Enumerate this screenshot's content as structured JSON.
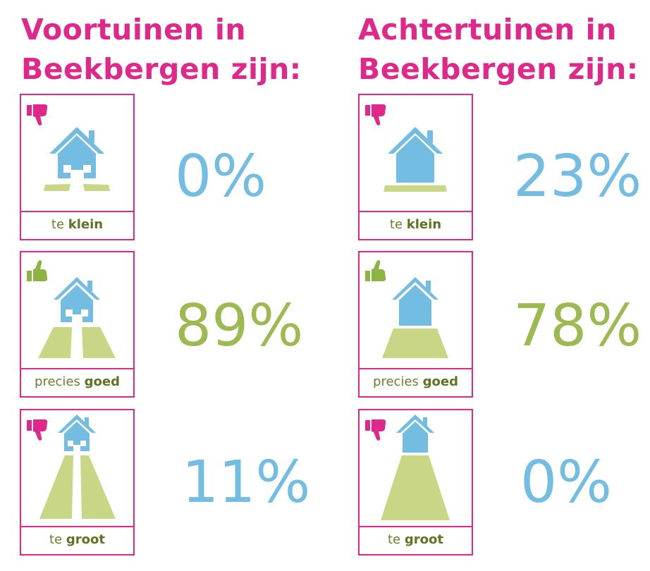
{
  "colors": {
    "title": "#e0288a",
    "house": "#73bde3",
    "path": "#c8d685",
    "bad": "#e0288a",
    "good": "#8cb442",
    "pct_blue": "#73bde3",
    "pct_green": "#9dba52"
  },
  "icons": {
    "bad": "thumbs-down-icon",
    "good": "thumbs-up-icon"
  },
  "chart_data": [
    {
      "type": "table",
      "title": "Voortuinen in Beekbergen zijn:",
      "categories": [
        {
          "prefix": "te",
          "bold": "klein",
          "rating": "bad"
        },
        {
          "prefix": "precies",
          "bold": "goed",
          "rating": "good"
        },
        {
          "prefix": "te",
          "bold": "groot",
          "rating": "bad"
        }
      ],
      "values": [
        0,
        89,
        11
      ],
      "labels": [
        "0%",
        "89%",
        "11%"
      ]
    },
    {
      "type": "table",
      "title": "Achtertuinen in Beekbergen zijn:",
      "categories": [
        {
          "prefix": "te",
          "bold": "klein",
          "rating": "bad"
        },
        {
          "prefix": "precies",
          "bold": "goed",
          "rating": "good"
        },
        {
          "prefix": "te",
          "bold": "groot",
          "rating": "bad"
        }
      ],
      "values": [
        23,
        78,
        0
      ],
      "labels": [
        "23%",
        "78%",
        "0%"
      ]
    }
  ]
}
